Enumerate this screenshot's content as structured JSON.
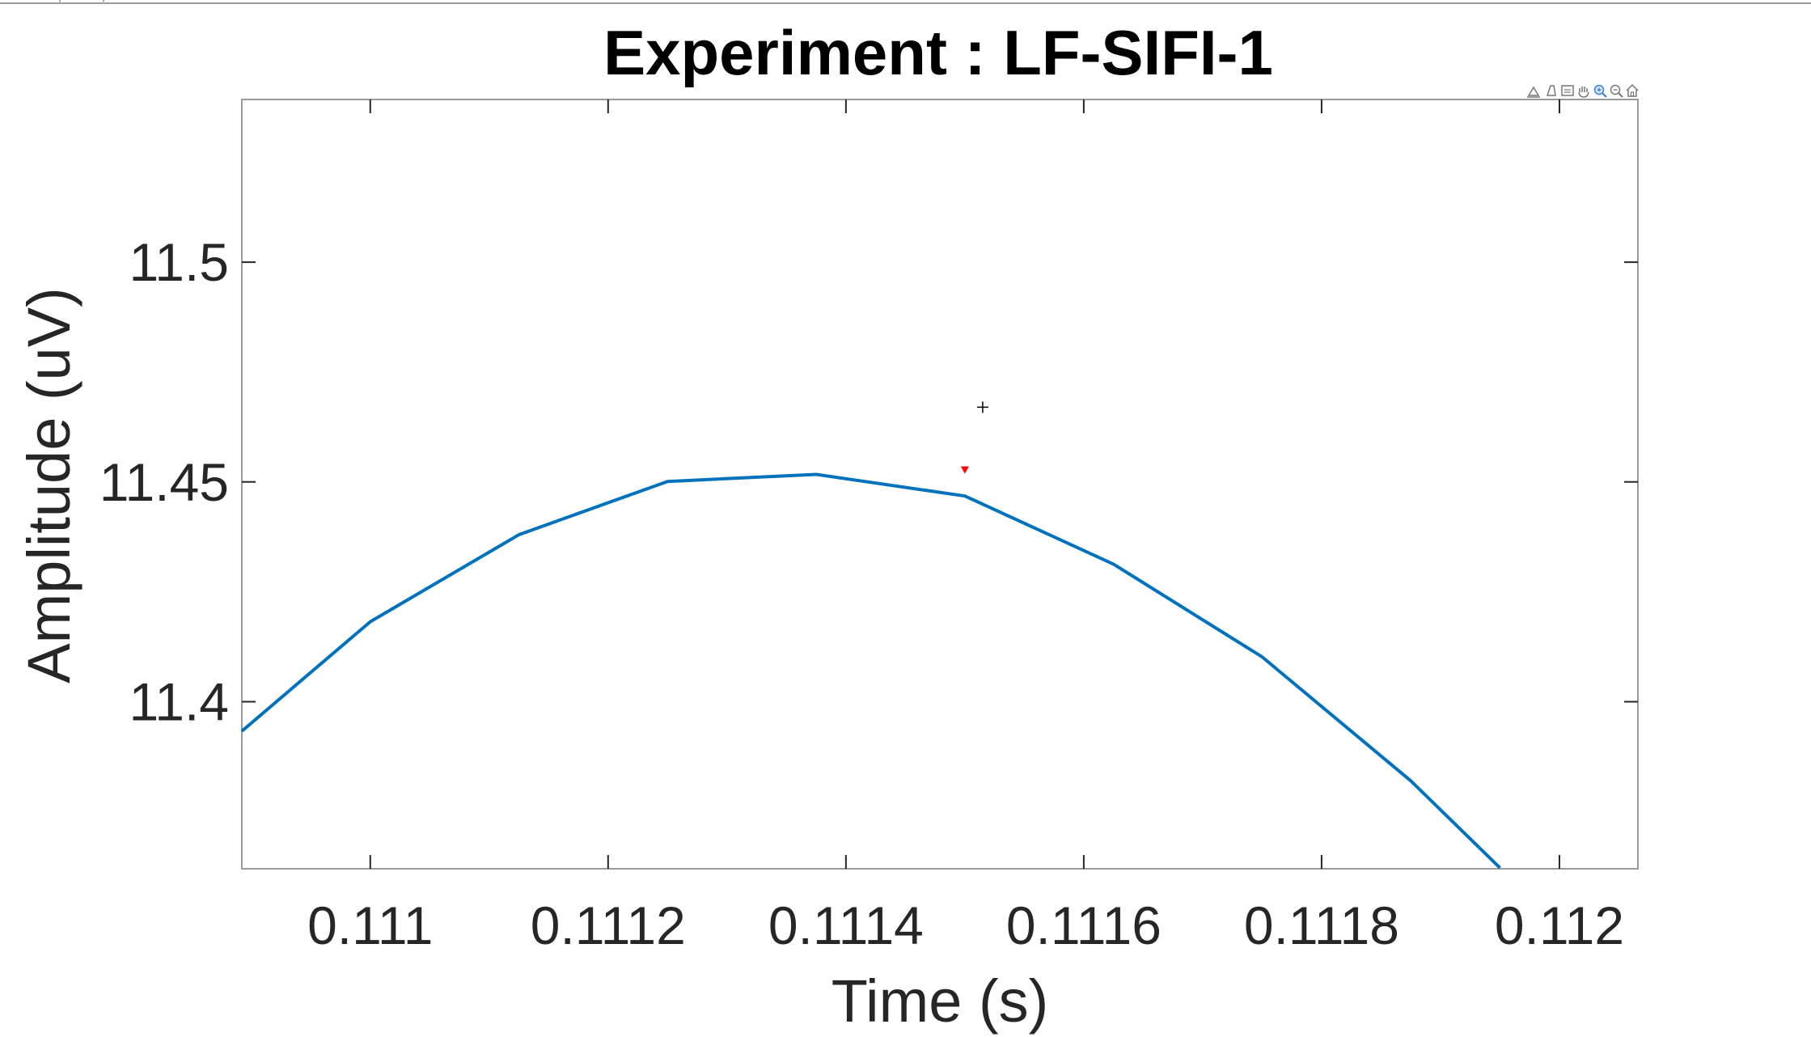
{
  "chart_data": {
    "type": "line",
    "title": "Experiment : LF-SIFI-1",
    "xlabel": "Time (s)",
    "ylabel": "Amplitude (uV)",
    "xlim": [
      0.110892,
      0.112066
    ],
    "ylim": [
      11.362,
      11.537
    ],
    "x_ticks": [
      0.111,
      0.1112,
      0.1114,
      0.1116,
      0.1118,
      0.112
    ],
    "x_tick_labels": [
      "0.111",
      "0.1112",
      "0.1114",
      "0.1116",
      "0.1118",
      "0.112"
    ],
    "y_ticks": [
      11.4,
      11.45,
      11.5
    ],
    "y_tick_labels": [
      "11.4",
      "11.45",
      "11.5"
    ],
    "grid": false,
    "box": true,
    "series": [
      {
        "color": "#0072BD",
        "x": [
          0.110892,
          0.111,
          0.111125,
          0.11125,
          0.111375,
          0.1115,
          0.111625,
          0.11175,
          0.111875,
          0.11195
        ],
        "y": [
          11.3933,
          11.4182,
          11.438,
          11.4501,
          11.4517,
          11.4468,
          11.4313,
          11.4102,
          11.382,
          11.3622
        ]
      }
    ],
    "markers": [
      {
        "name": "datatip",
        "shape": "triangle-down",
        "color": "#FF0000",
        "x": 0.1115,
        "y": 11.4528
      },
      {
        "name": "cursor",
        "shape": "crosshair",
        "color": "#000000",
        "x": 0.111515,
        "y": 11.467
      }
    ]
  },
  "toolbar": {
    "icons": [
      "export-icon",
      "brush-icon",
      "datatip-icon",
      "pan-icon",
      "zoom-in-icon",
      "zoom-out-icon",
      "home-icon"
    ]
  }
}
